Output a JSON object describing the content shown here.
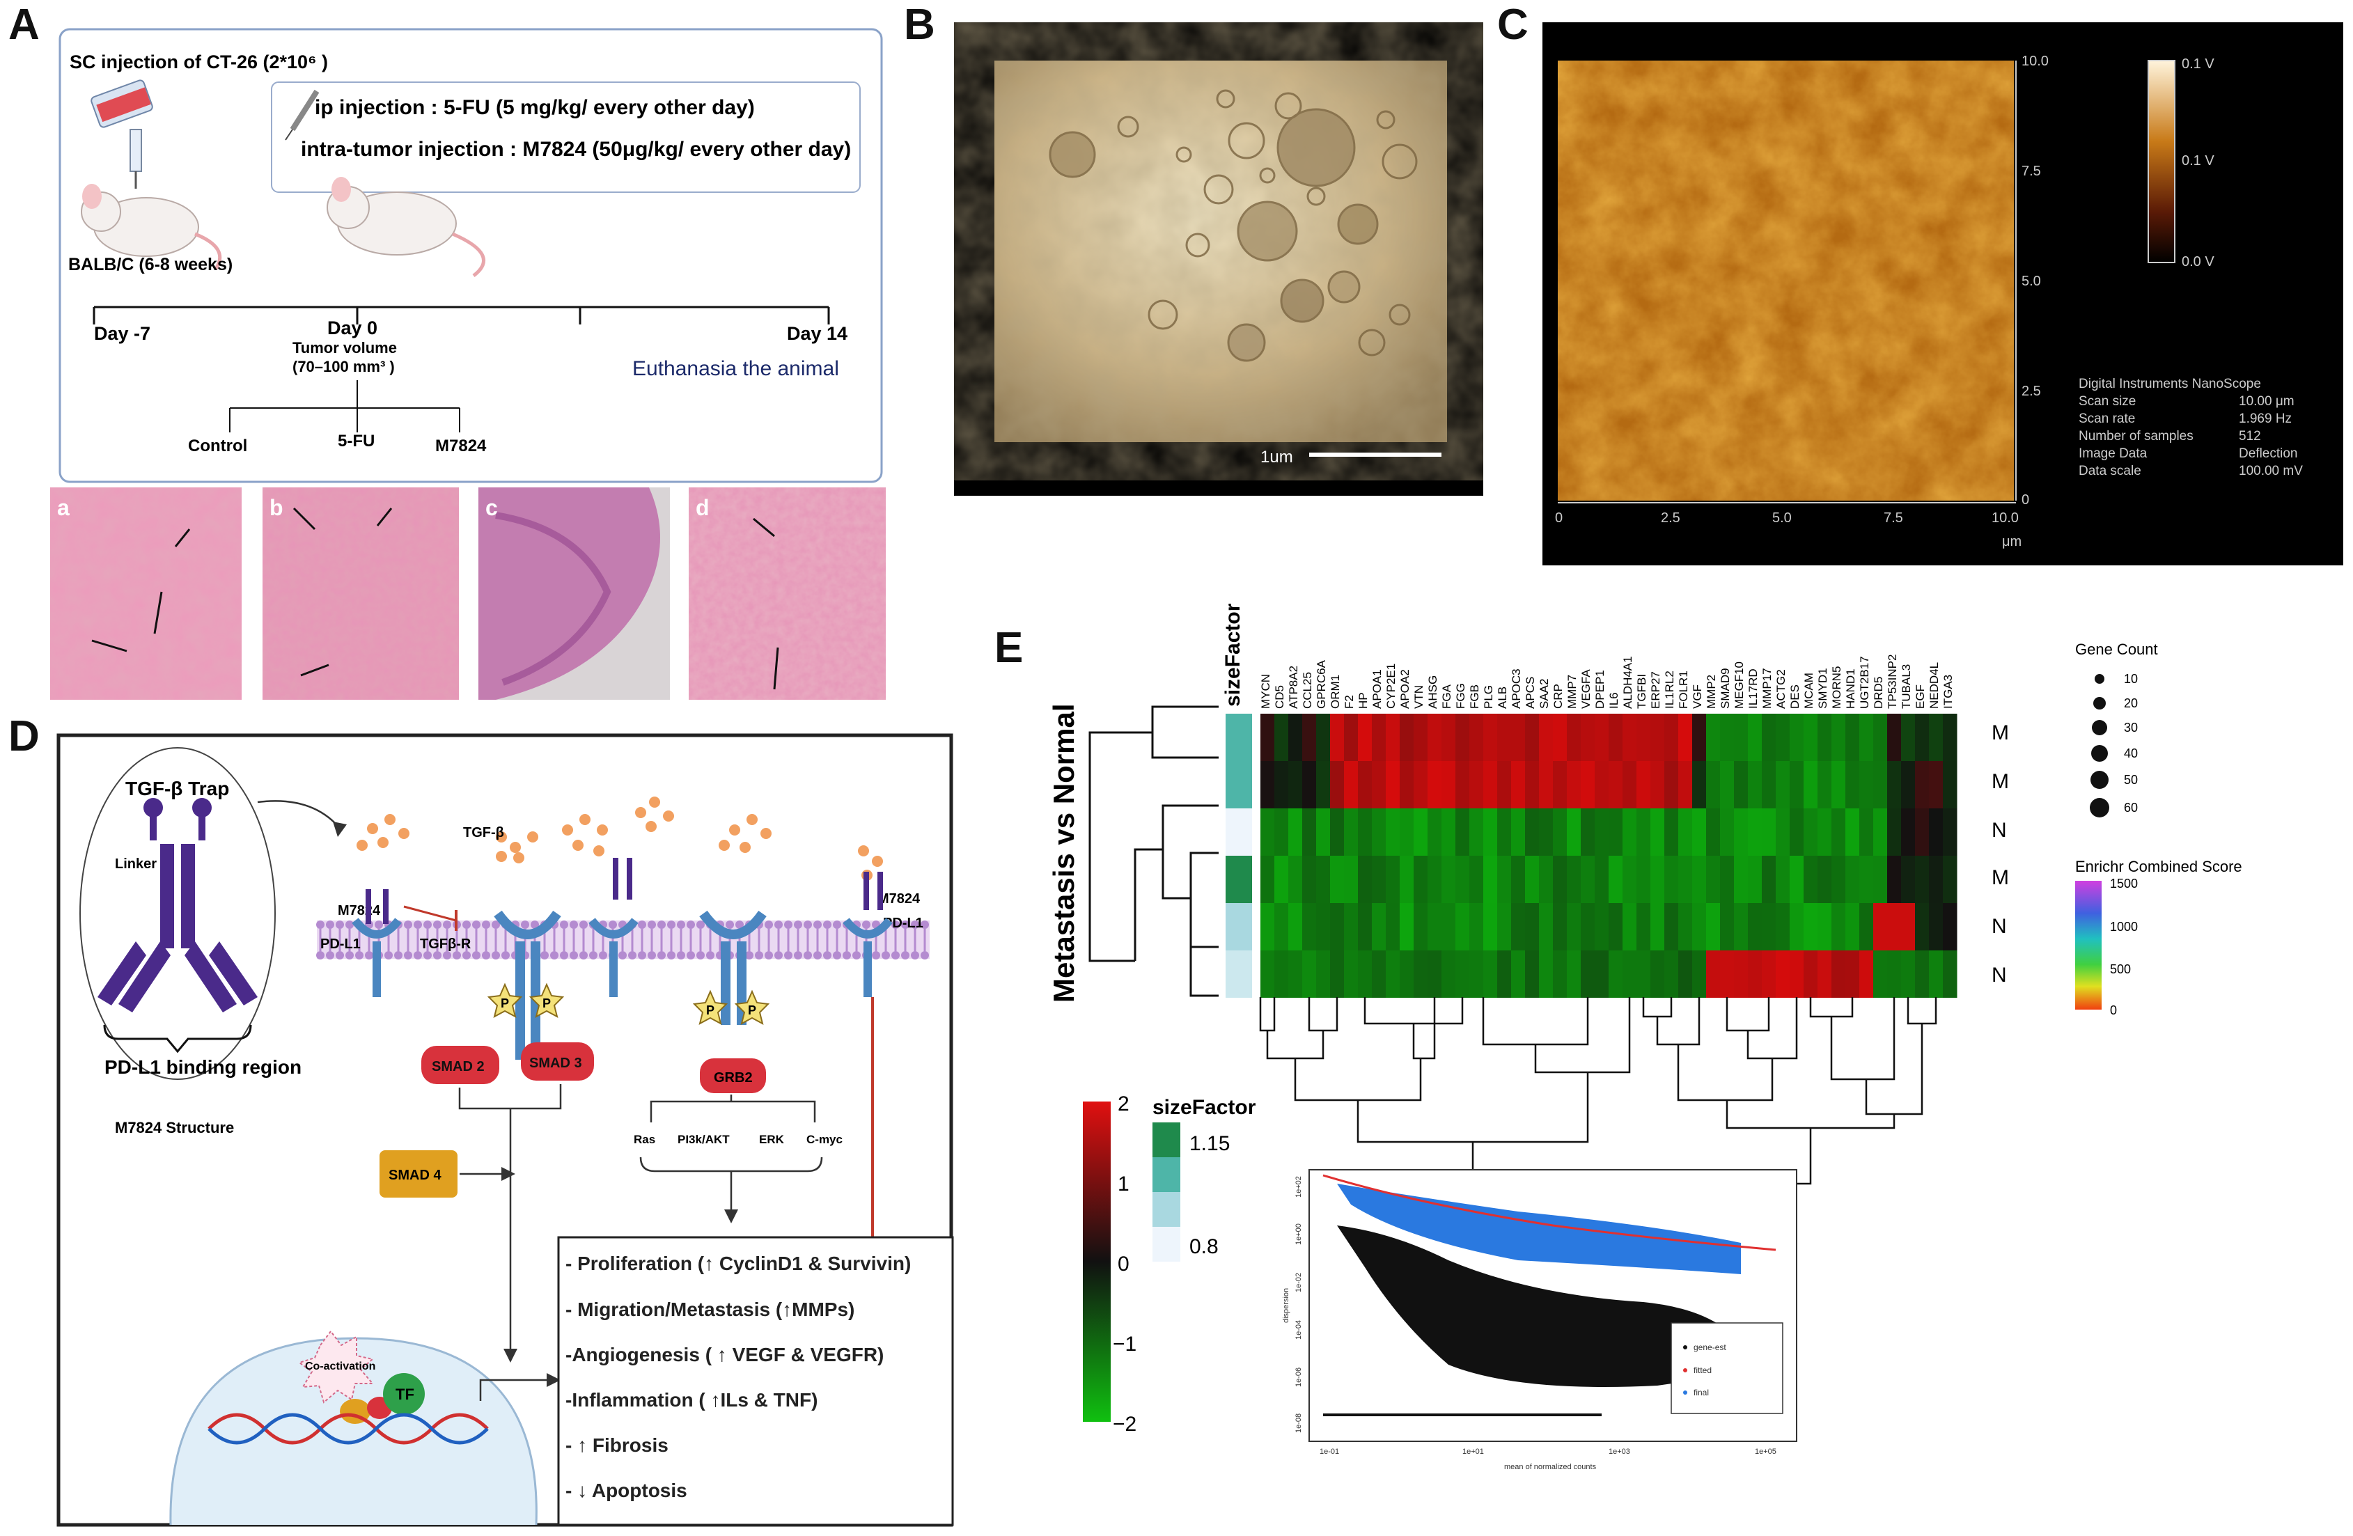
{
  "panels": {
    "A": {
      "label": "A",
      "sc_injection": "SC injection of CT-26 (2*10⁶ )",
      "ip_injection": "ip injection : 5-FU (5 mg/kg/ every other day)",
      "intra_tumor": "intra-tumor injection : M7824 (50μg/kg/ every other day)",
      "mouse_strain": "BALB/C (6-8 weeks)",
      "day_minus7": "Day  -7",
      "day0": "Day  0",
      "tumor_volume": "Tumor volume",
      "tumor_range": "(70–100 mm³ )",
      "day14": "Day  14",
      "euthanasia": "Euthanasia the animal",
      "groups": [
        "Control",
        "5-FU",
        "M7824"
      ],
      "histology_labels": [
        "a",
        "b",
        "c",
        "d"
      ]
    },
    "B": {
      "label": "B",
      "scale_bar": "1um"
    },
    "C": {
      "label": "C",
      "y_ticks": [
        "10.0",
        "7.5",
        "5.0",
        "2.5",
        "0"
      ],
      "x_ticks": [
        "0",
        "2.5",
        "5.0",
        "7.5",
        "10.0"
      ],
      "x_unit": "μm",
      "colorbar_ticks": [
        "0.1 V",
        "0.1 V",
        "0.0 V"
      ],
      "info_title": "Digital Instruments NanoScope",
      "info_rows": [
        {
          "k": "Scan size",
          "v": "10.00 μm"
        },
        {
          "k": "Scan rate",
          "v": "1.969 Hz"
        },
        {
          "k": "Number of samples",
          "v": "512"
        },
        {
          "k": "Image Data",
          "v": "Deflection"
        },
        {
          "k": "Data scale",
          "v": "100.00 mV"
        }
      ]
    },
    "D": {
      "label": "D",
      "tgf_trap": "TGF-β Trap",
      "linker": "Linker",
      "pdl1_binding": "PD-L1 binding region",
      "structure": "M7824 Structure",
      "m7824_left": "M7824",
      "pdl1_left": "PD-L1",
      "tgfb": "TGF-β",
      "tgfbr": "TGFβ-R",
      "m7824_right": "M7824",
      "pdl1_right": "PD-L1",
      "p": "P",
      "smad2": "SMAD 2",
      "smad3": "SMAD 3",
      "smad4": "SMAD 4",
      "grb2": "GRB2",
      "pathways": [
        "Ras",
        "PI3k/AKT",
        "ERK",
        "C-myc"
      ],
      "coactivation": "Co-activation",
      "tf": "TF",
      "outcomes": [
        "- Proliferation (↑ CyclinD1 & Survivin)",
        "- Migration/Metastasis (↑MMPs)",
        "-Angiogenesis ( ↑ VEGF & VEGFR)",
        "-Inflammation ( ↑ILs & TNF)",
        "- ↑ Fibrosis",
        "- ↓ Apoptosis"
      ]
    },
    "E": {
      "label": "E",
      "y_title": "Metastasis vs Normal",
      "sizefactor_header": "sizeFactor",
      "genes": [
        "MYCN",
        "CD5",
        "ATP8A2",
        "CCL25",
        "GPRC6A",
        "ORM1",
        "F2",
        "HP",
        "APOA1",
        "CYP2E1",
        "APOA2",
        "VTN",
        "AHSG",
        "FGA",
        "FGG",
        "FGB",
        "PLG",
        "ALB",
        "APOC3",
        "APCS",
        "SAA2",
        "CRP",
        "MMP7",
        "VEGFA",
        "DPEP1",
        "IL6",
        "ALDH4A1",
        "TGFBI",
        "ERP27",
        "IL1RL2",
        "FOLR1",
        "VGF",
        "MMP2",
        "SMAD9",
        "MEGF10",
        "IL17RD",
        "MMP17",
        "ACTG2",
        "DES",
        "MCAM",
        "SMYD1",
        "MORN5",
        "HAND1",
        "UGT2B17",
        "DRD5",
        "TP53INP2",
        "TUBAL3",
        "EGF",
        "NEDD4L",
        "ITGA3"
      ],
      "row_labels": [
        "M",
        "M",
        "N",
        "M",
        "N",
        "N"
      ],
      "gene_count_title": "Gene Count",
      "gene_counts": [
        "10",
        "20",
        "30",
        "40",
        "50",
        "60"
      ],
      "enrichr_title": "Enrichr Combined Score",
      "enrichr_ticks": [
        "1500",
        "1000",
        "500",
        "0"
      ],
      "scale_ticks": [
        "2",
        "1",
        "0",
        "−1",
        "−2"
      ],
      "sf_title": "sizeFactor",
      "sf_ticks": [
        "1.15",
        "0.8"
      ],
      "disp_ylabel": "dispersion",
      "disp_xlabel": "mean of normalized counts",
      "disp_yticks": [
        "1e+02",
        "1e+00",
        "1e-02",
        "1e-04",
        "1e-06",
        "1e-08"
      ],
      "disp_xticks": [
        "1e-01",
        "1e+01",
        "1e+03",
        "1e+05"
      ],
      "disp_legend": [
        "gene-est",
        "fitted",
        "final"
      ]
    }
  },
  "colors": {
    "heat_high": "#e01010",
    "heat_low": "#10b010",
    "mid": "#111111",
    "membrane": "#b48bd0",
    "smad": "#d8323c",
    "smad4": "#e0a020",
    "antibody": "#4a2a8a",
    "receptor": "#4a86c0"
  }
}
